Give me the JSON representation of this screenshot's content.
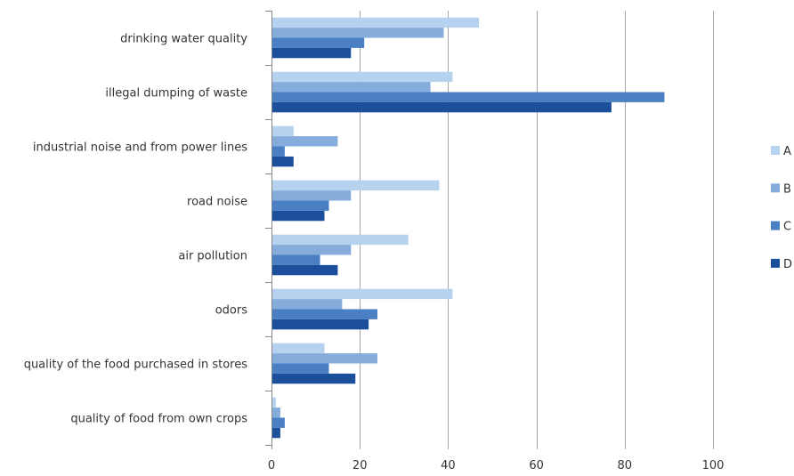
{
  "chart_data": {
    "type": "bar",
    "orientation": "horizontal",
    "categories": [
      "drinking water quality",
      "illegal dumping of waste",
      "industrial noise and from power lines",
      "road noise",
      "air pollution",
      "odors",
      "quality of the food purchased in stores",
      "quality of food from own crops"
    ],
    "series": [
      {
        "name": "A",
        "color": "#b7d2ee",
        "values": [
          47,
          41,
          5,
          38,
          31,
          41,
          12,
          1
        ]
      },
      {
        "name": "B",
        "color": "#86acdc",
        "values": [
          39,
          36,
          15,
          18,
          18,
          16,
          24,
          2
        ]
      },
      {
        "name": "C",
        "color": "#4a7fc3",
        "values": [
          21,
          89,
          3,
          13,
          11,
          24,
          13,
          3
        ]
      },
      {
        "name": "D",
        "color": "#1b4f9c",
        "values": [
          18,
          77,
          5,
          12,
          15,
          22,
          19,
          2
        ]
      }
    ],
    "xlim": [
      0,
      100
    ],
    "xticks": [
      0,
      20,
      40,
      60,
      80,
      100
    ],
    "title": "",
    "xlabel": "",
    "ylabel": "",
    "grid": "vertical",
    "legend_position": "right"
  }
}
